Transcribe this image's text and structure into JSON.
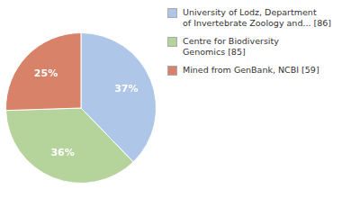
{
  "chart_data": {
    "type": "pie",
    "categories": [
      "University of Lodz, Department\nof Invertebrate Zoology and... [86]",
      "Centre for Biodiversity\nGenomics [85]",
      "Mined from GenBank, NCBI [59]"
    ],
    "values": [
      37,
      36,
      25
    ],
    "value_labels": [
      "37%",
      "36%",
      "25%"
    ],
    "colors": [
      "#aec6e8",
      "#b5d49b",
      "#d9826a"
    ],
    "data_labels": true,
    "legend": "right"
  }
}
